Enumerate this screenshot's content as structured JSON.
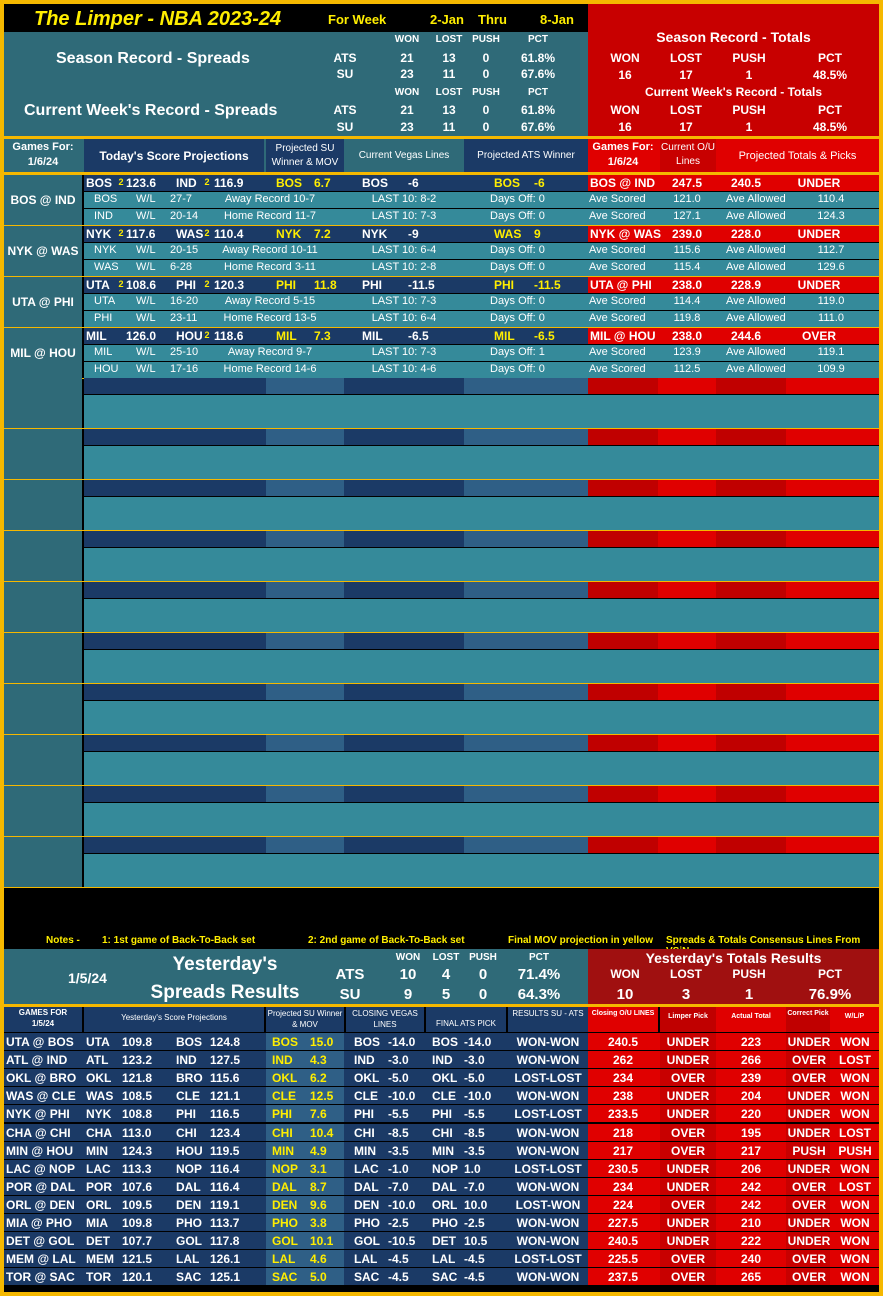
{
  "header": {
    "title": "The Limper - NBA 2023-24",
    "for_week": "For Week",
    "from": "2-Jan",
    "thru": "Thru",
    "to": "8-Jan"
  },
  "season_spreads": {
    "label": "Season Record - Spreads",
    "cols": [
      "WON",
      "LOST",
      "PUSH",
      "PCT"
    ],
    "ats": [
      "ATS",
      "21",
      "13",
      "0",
      "61.8%"
    ],
    "su": [
      "SU",
      "23",
      "11",
      "0",
      "67.6%"
    ]
  },
  "week_spreads": {
    "label": "Current Week's Record - Spreads",
    "cols": [
      "WON",
      "LOST",
      "PUSH",
      "PCT"
    ],
    "ats": [
      "ATS",
      "21",
      "13",
      "0",
      "61.8%"
    ],
    "su": [
      "SU",
      "23",
      "11",
      "0",
      "67.6%"
    ]
  },
  "season_totals": {
    "label": "Season Record - Totals",
    "cols": [
      "WON",
      "LOST",
      "PUSH",
      "PCT"
    ],
    "vals": [
      "16",
      "17",
      "1",
      "48.5%"
    ]
  },
  "week_totals": {
    "label": "Current Week's Record - Totals",
    "cols": [
      "WON",
      "LOST",
      "PUSH",
      "PCT"
    ],
    "vals": [
      "16",
      "17",
      "1",
      "48.5%"
    ]
  },
  "today_header": {
    "games_for": "Games For:",
    "date": "1/6/24",
    "score_proj": "Today's Score Projections",
    "proj_su": "Projected SU Winner & MOV",
    "vegas": "Current Vegas Lines",
    "ats_winner": "Projected ATS Winner",
    "games_for2": "Games For:",
    "date2": "1/6/24",
    "current_ou": "Current O/U Lines",
    "totals_picks": "Projected Totals & Picks"
  },
  "games": [
    {
      "matchup": "BOS @ IND",
      "t1": "BOS",
      "t1b": "2",
      "s1": "123.6",
      "t2": "IND",
      "t2b": "2",
      "s2": "116.9",
      "su_team": "BOS",
      "su_mov": "6.7",
      "vegas_team": "BOS",
      "vegas_line": "-6",
      "ats_team": "BOS",
      "ats_line": "-6",
      "ou_match": "BOS @ IND",
      "ou_line": "247.5",
      "proj_total": "240.5",
      "pick": "UNDER",
      "sub": [
        {
          "team": "BOS",
          "wl": "W/L",
          "wlrec": "27-7",
          "rec": "Away Record 10-7",
          "last10": "LAST 10: 8-2",
          "days": "Days Off: 0",
          "scored_lbl": "Ave Scored",
          "scored": "121.0",
          "allowed_lbl": "Ave Allowed",
          "allowed": "110.4"
        },
        {
          "team": "IND",
          "wl": "W/L",
          "wlrec": "20-14",
          "rec": "Home Record 11-7",
          "last10": "LAST 10: 7-3",
          "days": "Days Off: 0",
          "scored_lbl": "Ave Scored",
          "scored": "127.1",
          "allowed_lbl": "Ave Allowed",
          "allowed": "124.3"
        }
      ]
    },
    {
      "matchup": "NYK @ WAS",
      "t1": "NYK",
      "t1b": "2",
      "s1": "117.6",
      "t2": "WAS",
      "t2b": "2",
      "s2": "110.4",
      "su_team": "NYK",
      "su_mov": "7.2",
      "vegas_team": "NYK",
      "vegas_line": "-9",
      "ats_team": "WAS",
      "ats_line": "9",
      "ou_match": "NYK @ WAS",
      "ou_line": "239.0",
      "proj_total": "228.0",
      "pick": "UNDER",
      "sub": [
        {
          "team": "NYK",
          "wl": "W/L",
          "wlrec": "20-15",
          "rec": "Away Record 10-11",
          "last10": "LAST 10: 6-4",
          "days": "Days Off: 0",
          "scored_lbl": "Ave Scored",
          "scored": "115.6",
          "allowed_lbl": "Ave Allowed",
          "allowed": "112.7"
        },
        {
          "team": "WAS",
          "wl": "W/L",
          "wlrec": "6-28",
          "rec": "Home Record 3-11",
          "last10": "LAST 10: 2-8",
          "days": "Days Off: 0",
          "scored_lbl": "Ave Scored",
          "scored": "115.4",
          "allowed_lbl": "Ave Allowed",
          "allowed": "129.6"
        }
      ]
    },
    {
      "matchup": "UTA @ PHI",
      "t1": "UTA",
      "t1b": "2",
      "s1": "108.6",
      "t2": "PHI",
      "t2b": "2",
      "s2": "120.3",
      "su_team": "PHI",
      "su_mov": "11.8",
      "vegas_team": "PHI",
      "vegas_line": "-11.5",
      "ats_team": "PHI",
      "ats_line": "-11.5",
      "ou_match": "UTA @ PHI",
      "ou_line": "238.0",
      "proj_total": "228.9",
      "pick": "UNDER",
      "sub": [
        {
          "team": "UTA",
          "wl": "W/L",
          "wlrec": "16-20",
          "rec": "Away Record 5-15",
          "last10": "LAST 10: 7-3",
          "days": "Days Off: 0",
          "scored_lbl": "Ave Scored",
          "scored": "114.4",
          "allowed_lbl": "Ave Allowed",
          "allowed": "119.0"
        },
        {
          "team": "PHI",
          "wl": "W/L",
          "wlrec": "23-11",
          "rec": "Home Record 13-5",
          "last10": "LAST 10: 6-4",
          "days": "Days Off: 0",
          "scored_lbl": "Ave Scored",
          "scored": "119.8",
          "allowed_lbl": "Ave Allowed",
          "allowed": "111.0"
        }
      ]
    },
    {
      "matchup": "MIL @ HOU",
      "t1": "MIL",
      "t1b": "",
      "s1": "126.0",
      "t2": "HOU",
      "t2b": "2",
      "s2": "118.6",
      "su_team": "MIL",
      "su_mov": "7.3",
      "vegas_team": "MIL",
      "vegas_line": "-6.5",
      "ats_team": "MIL",
      "ats_line": "-6.5",
      "ou_match": "MIL @ HOU",
      "ou_line": "238.0",
      "proj_total": "244.6",
      "pick": "OVER",
      "sub": [
        {
          "team": "MIL",
          "wl": "W/L",
          "wlrec": "25-10",
          "rec": "Away Record 9-7",
          "last10": "LAST 10: 7-3",
          "days": "Days Off: 1",
          "scored_lbl": "Ave Scored",
          "scored": "123.9",
          "allowed_lbl": "Ave Allowed",
          "allowed": "119.1"
        },
        {
          "team": "HOU",
          "wl": "W/L",
          "wlrec": "17-16",
          "rec": "Home Record 14-6",
          "last10": "LAST 10: 4-6",
          "days": "Days Off: 0",
          "scored_lbl": "Ave Scored",
          "scored": "112.5",
          "allowed_lbl": "Ave Allowed",
          "allowed": "109.9"
        }
      ]
    }
  ],
  "notes": {
    "label": "Notes -",
    "n1": "1: 1st game of Back-To-Back set",
    "n2": "2: 2nd game of Back-To-Back set",
    "n3": "Final MOV projection in yellow",
    "n4": "Spreads & Totals Consensus Lines From VSiN"
  },
  "yesterday": {
    "date": "1/5/24",
    "title1": "Yesterday's",
    "title2": "Spreads Results",
    "cols": [
      "WON",
      "LOST",
      "PUSH",
      "PCT"
    ],
    "ats": [
      "ATS",
      "10",
      "4",
      "0",
      "71.4%"
    ],
    "su": [
      "SU",
      "9",
      "5",
      "0",
      "64.3%"
    ],
    "totals_title": "Yesterday's Totals Results",
    "totals_vals": [
      "10",
      "3",
      "1",
      "76.9%"
    ]
  },
  "results_header": {
    "games_for": "GAMES FOR",
    "date": "1/5/24",
    "score_proj": "Yesterday's Score Projections",
    "proj_su": "Projected SU Winner & MOV",
    "closing": "CLOSING VEGAS LINES",
    "final_ats": "FINAL ATS PICK",
    "results": "RESULTS SU - ATS",
    "closing_ou": "Closing O/U LINES",
    "limper_pick": "Limper Pick",
    "actual_total": "Actual Total",
    "correct_pick": "Correct Pick",
    "wlp": "W/L/P"
  },
  "results": [
    [
      "UTA @ BOS",
      "UTA",
      "109.8",
      "BOS",
      "124.8",
      "BOS",
      "15.0",
      "BOS",
      "-14.0",
      "BOS",
      "-14.0",
      "WON-WON",
      "240.5",
      "UNDER",
      "223",
      "UNDER",
      "WON"
    ],
    [
      "ATL @ IND",
      "ATL",
      "123.2",
      "IND",
      "127.5",
      "IND",
      "4.3",
      "IND",
      "-3.0",
      "IND",
      "-3.0",
      "WON-WON",
      "262",
      "UNDER",
      "266",
      "OVER",
      "LOST"
    ],
    [
      "OKL @ BRO",
      "OKL",
      "121.8",
      "BRO",
      "115.6",
      "OKL",
      "6.2",
      "OKL",
      "-5.0",
      "OKL",
      "-5.0",
      "LOST-LOST",
      "234",
      "OVER",
      "239",
      "OVER",
      "WON"
    ],
    [
      "WAS @ CLE",
      "WAS",
      "108.5",
      "CLE",
      "121.1",
      "CLE",
      "12.5",
      "CLE",
      "-10.0",
      "CLE",
      "-10.0",
      "WON-WON",
      "238",
      "UNDER",
      "204",
      "UNDER",
      "WON"
    ],
    [
      "NYK @ PHI",
      "NYK",
      "108.8",
      "PHI",
      "116.5",
      "PHI",
      "7.6",
      "PHI",
      "-5.5",
      "PHI",
      "-5.5",
      "LOST-LOST",
      "233.5",
      "UNDER",
      "220",
      "UNDER",
      "WON"
    ],
    [
      "CHA @ CHI",
      "CHA",
      "113.0",
      "CHI",
      "123.4",
      "CHI",
      "10.4",
      "CHI",
      "-8.5",
      "CHI",
      "-8.5",
      "WON-WON",
      "218",
      "OVER",
      "195",
      "UNDER",
      "LOST"
    ],
    [
      "MIN @ HOU",
      "MIN",
      "124.3",
      "HOU",
      "119.5",
      "MIN",
      "4.9",
      "MIN",
      "-3.5",
      "MIN",
      "-3.5",
      "WON-WON",
      "217",
      "OVER",
      "217",
      "PUSH",
      "PUSH"
    ],
    [
      "LAC @ NOP",
      "LAC",
      "113.3",
      "NOP",
      "116.4",
      "NOP",
      "3.1",
      "LAC",
      "-1.0",
      "NOP",
      "1.0",
      "LOST-LOST",
      "230.5",
      "UNDER",
      "206",
      "UNDER",
      "WON"
    ],
    [
      "POR @ DAL",
      "POR",
      "107.6",
      "DAL",
      "116.4",
      "DAL",
      "8.7",
      "DAL",
      "-7.0",
      "DAL",
      "-7.0",
      "WON-WON",
      "234",
      "UNDER",
      "242",
      "OVER",
      "LOST"
    ],
    [
      "ORL @ DEN",
      "ORL",
      "109.5",
      "DEN",
      "119.1",
      "DEN",
      "9.6",
      "DEN",
      "-10.0",
      "ORL",
      "10.0",
      "LOST-WON",
      "224",
      "OVER",
      "242",
      "OVER",
      "WON"
    ],
    [
      "MIA @ PHO",
      "MIA",
      "109.8",
      "PHO",
      "113.7",
      "PHO",
      "3.8",
      "PHO",
      "-2.5",
      "PHO",
      "-2.5",
      "WON-WON",
      "227.5",
      "UNDER",
      "210",
      "UNDER",
      "WON"
    ],
    [
      "DET @ GOL",
      "DET",
      "107.7",
      "GOL",
      "117.8",
      "GOL",
      "10.1",
      "GOL",
      "-10.5",
      "DET",
      "10.5",
      "WON-WON",
      "240.5",
      "UNDER",
      "222",
      "UNDER",
      "WON"
    ],
    [
      "MEM @ LAL",
      "MEM",
      "121.5",
      "LAL",
      "126.1",
      "LAL",
      "4.6",
      "LAL",
      "-4.5",
      "LAL",
      "-4.5",
      "LOST-LOST",
      "225.5",
      "OVER",
      "240",
      "OVER",
      "WON"
    ],
    [
      "TOR @ SAC",
      "TOR",
      "120.1",
      "SAC",
      "125.1",
      "SAC",
      "5.0",
      "SAC",
      "-4.5",
      "SAC",
      "-4.5",
      "WON-WON",
      "237.5",
      "OVER",
      "265",
      "OVER",
      "WON"
    ]
  ],
  "colors": {
    "gold": "#f5b800",
    "teal": "#2f6a78",
    "teal_light": "#358a9a",
    "navy": "#1b3a66",
    "red": "#e00000",
    "yellow_text": "#ffee00"
  }
}
